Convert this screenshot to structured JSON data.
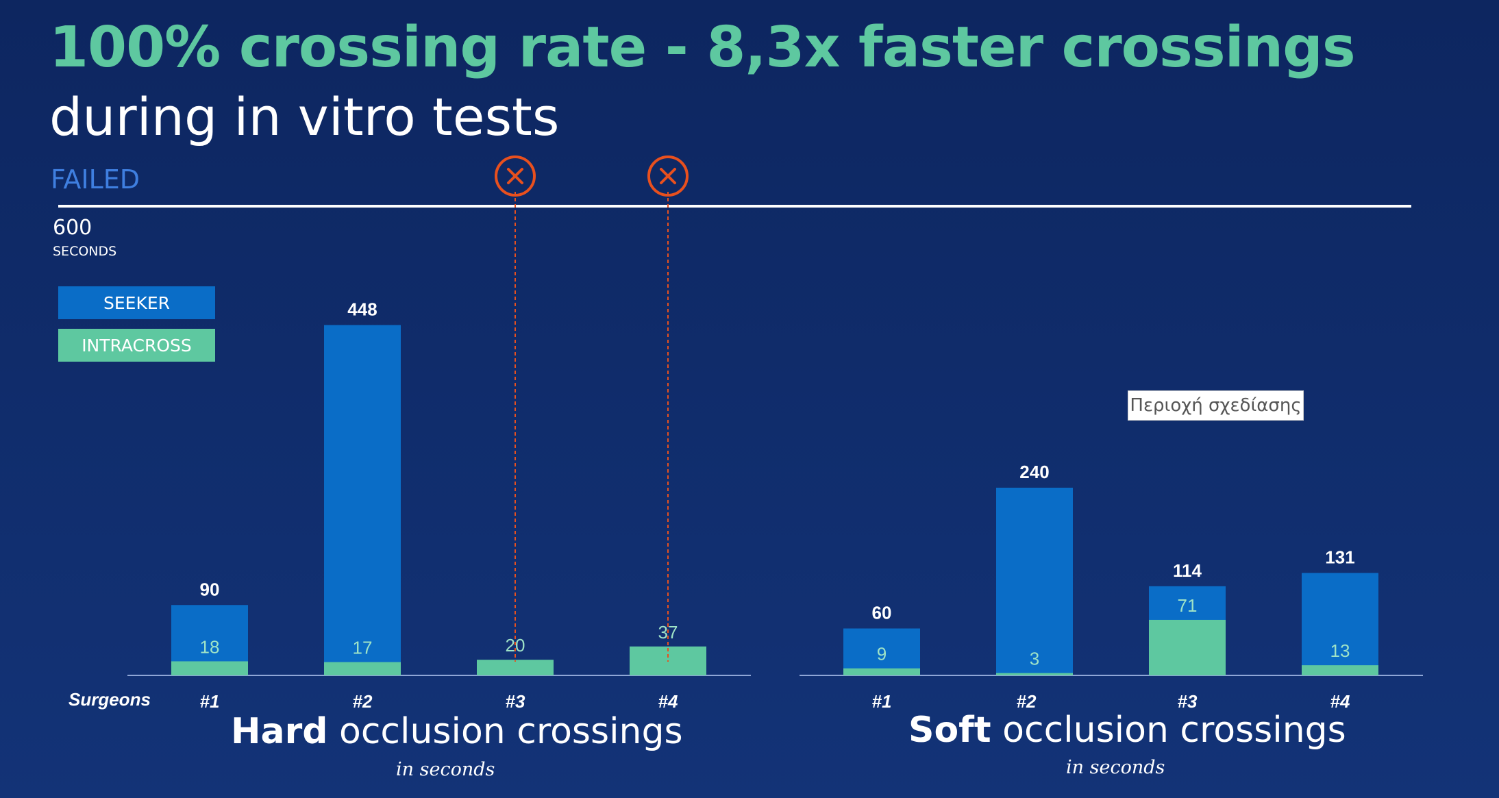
{
  "header": {
    "title_line1": "100% crossing rate - 8,3x faster crossings",
    "title_line2": "during in vitro tests"
  },
  "failed_label": "FAILED",
  "max_value": "600",
  "max_unit": "SECONDS",
  "legend": {
    "seeker": "SEEKER",
    "intracross": "INTRACROSS"
  },
  "tooltip": "Περιοχή σχεδίασης",
  "surgeons_label": "Surgeons",
  "panels": {
    "hard": {
      "title_bold": "Hard",
      "title_rest": " occlusion crossings",
      "subtitle": "in seconds"
    },
    "soft": {
      "title_bold": "Soft",
      "title_rest": " occlusion crossings",
      "subtitle": "in seconds"
    }
  },
  "colors": {
    "seeker": "#0a6dc7",
    "intracross": "#5ec8a0",
    "failed_marker": "#e8501e",
    "seeker_label": "#ffffff",
    "intracross_label": "#9fe3c7"
  },
  "chart_data": [
    {
      "type": "bar",
      "categories": [
        "#1",
        "#2",
        "#3",
        "#4"
      ],
      "series": [
        {
          "name": "SEEKER",
          "values": [
            90,
            448,
            null,
            null
          ]
        },
        {
          "name": "INTRACROSS",
          "values": [
            18,
            17,
            20,
            37
          ]
        }
      ],
      "failed": [
        false,
        false,
        true,
        true
      ],
      "ylim": [
        0,
        600
      ],
      "ylabel": "SECONDS",
      "title": "Hard occlusion crossings"
    },
    {
      "type": "bar",
      "categories": [
        "#1",
        "#2",
        "#3",
        "#4"
      ],
      "series": [
        {
          "name": "SEEKER",
          "values": [
            60,
            240,
            114,
            131
          ]
        },
        {
          "name": "INTRACROSS",
          "values": [
            9,
            3,
            71,
            13
          ]
        }
      ],
      "failed": [
        false,
        false,
        false,
        false
      ],
      "ylim": [
        0,
        600
      ],
      "ylabel": "SECONDS",
      "title": "Soft occlusion crossings"
    }
  ]
}
